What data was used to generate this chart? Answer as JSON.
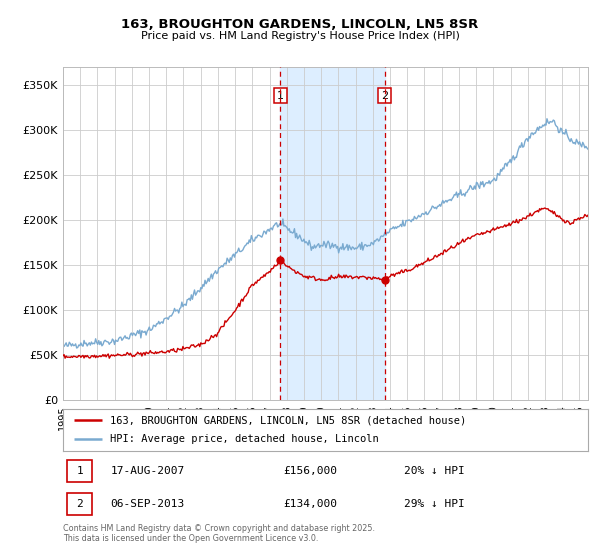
{
  "title": "163, BROUGHTON GARDENS, LINCOLN, LN5 8SR",
  "subtitle": "Price paid vs. HM Land Registry's House Price Index (HPI)",
  "legend_line1": "163, BROUGHTON GARDENS, LINCOLN, LN5 8SR (detached house)",
  "legend_line2": "HPI: Average price, detached house, Lincoln",
  "annotation1_label": "1",
  "annotation1_date": "17-AUG-2007",
  "annotation1_price": "£156,000",
  "annotation1_hpi": "20% ↓ HPI",
  "annotation2_label": "2",
  "annotation2_date": "06-SEP-2013",
  "annotation2_price": "£134,000",
  "annotation2_hpi": "29% ↓ HPI",
  "vline1_x": 2007.625,
  "vline2_x": 2013.68,
  "shade_start": 2007.625,
  "shade_end": 2013.68,
  "marker1_x": 2007.625,
  "marker1_y": 156000,
  "marker2_x": 2013.68,
  "marker2_y": 134000,
  "red_color": "#cc0000",
  "blue_color": "#7aaad0",
  "shade_color": "#ddeeff",
  "grid_color": "#cccccc",
  "background_color": "#ffffff",
  "ylim": [
    0,
    370000
  ],
  "xlim_start": 1995,
  "xlim_end": 2025.5,
  "footer_text": "Contains HM Land Registry data © Crown copyright and database right 2025.\nThis data is licensed under the Open Government Licence v3.0.",
  "yticks": [
    0,
    50000,
    100000,
    150000,
    200000,
    250000,
    300000,
    350000
  ],
  "ytick_labels": [
    "£0",
    "£50K",
    "£100K",
    "£150K",
    "£200K",
    "£250K",
    "£300K",
    "£350K"
  ]
}
